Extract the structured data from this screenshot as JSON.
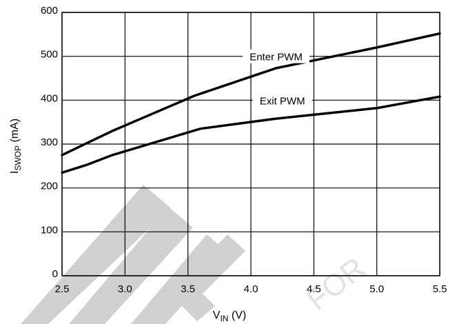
{
  "chart_data": {
    "type": "line",
    "xlabel": {
      "main": "V",
      "sub": "IN",
      "unit": " (V)"
    },
    "ylabel": {
      "main": "I",
      "sub": "SWOP",
      "unit": " (mA)"
    },
    "xlim": [
      2.5,
      5.5
    ],
    "ylim": [
      0,
      600
    ],
    "xticks": [
      "2.5",
      "3.0",
      "3.5",
      "4.0",
      "4.5",
      "5.0",
      "5.5"
    ],
    "yticks": [
      "0",
      "100",
      "200",
      "300",
      "400",
      "500",
      "600"
    ],
    "grid": true,
    "series": [
      {
        "name": "Enter PWM",
        "color": "#000000",
        "x": [
          2.5,
          2.9,
          3.55,
          4.2,
          5.0,
          5.5
        ],
        "y": [
          275,
          330,
          410,
          473,
          520,
          552
        ]
      },
      {
        "name": "Exit PWM",
        "color": "#000000",
        "x": [
          2.5,
          2.7,
          2.9,
          3.6,
          4.2,
          5.0,
          5.5
        ],
        "y": [
          235,
          253,
          275,
          335,
          358,
          382,
          408
        ]
      }
    ]
  }
}
